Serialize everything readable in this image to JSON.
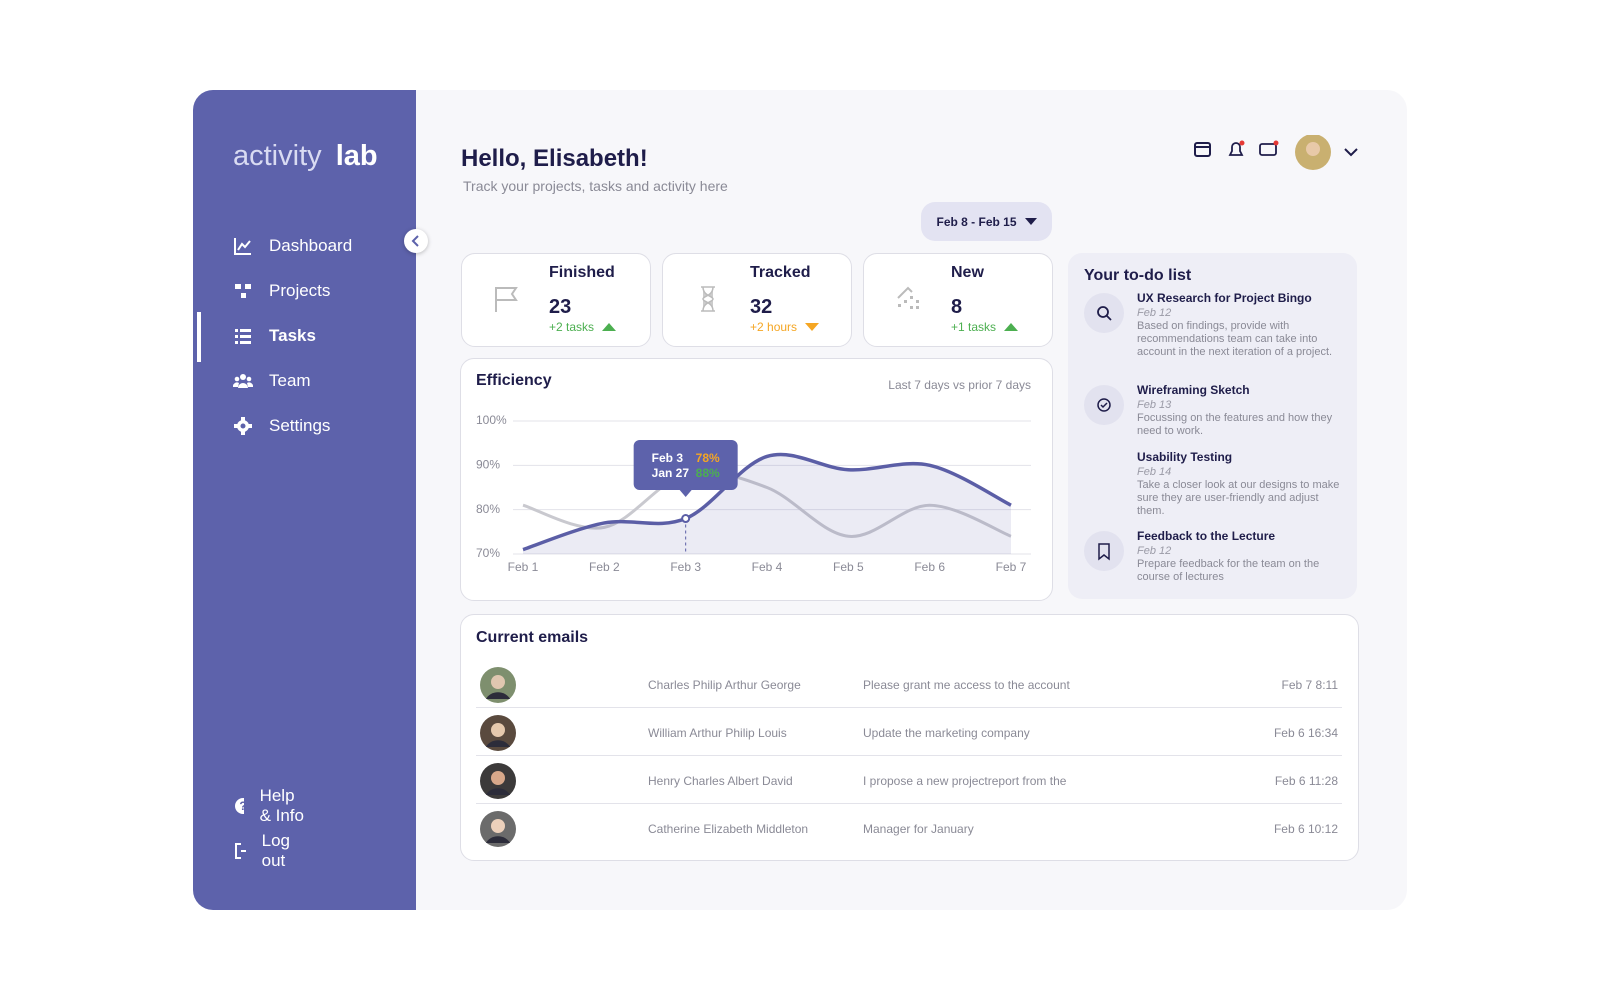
{
  "sidebar": {
    "logo_light": "activity",
    "logo_bold": "lab",
    "nav": [
      "Dashboard",
      "Projects",
      "Tasks",
      "Team",
      "Settings"
    ],
    "bottom_nav": [
      "Help & Info",
      "Log out"
    ]
  },
  "header": {
    "title": "Hello, Elisabeth!",
    "subtitle": "Track your projects, tasks and activity here",
    "date_range": "Feb 8 - Feb 15"
  },
  "stats": [
    {
      "label": "Finished",
      "value": 23,
      "change": "+2 tasks"
    },
    {
      "label": "Tracked",
      "value": 32,
      "change": "+2 hours"
    },
    {
      "label": "New",
      "value": 8,
      "change": "+1 tasks"
    }
  ],
  "efficiency": {
    "type": "line",
    "title": "Efficiency",
    "subtitle": "Last 7 days vs prior 7 days",
    "categories": [
      "Feb 1",
      "Feb 2",
      "Feb 3",
      "Feb 4",
      "Feb 5",
      "Feb 6",
      "Feb 7"
    ],
    "series": [
      {
        "color": "#5b5ea6",
        "values": [
          71,
          77,
          78,
          92,
          89,
          90,
          81
        ]
      },
      {
        "color": "#c9c9cf",
        "values": [
          81,
          76,
          88,
          85,
          74,
          81,
          74
        ]
      }
    ],
    "ylim": [
      70,
      100
    ],
    "yticks": [
      {
        "value": 100,
        "label": "100%"
      },
      {
        "value": 90,
        "label": "90%"
      },
      {
        "value": 80,
        "label": "80%"
      },
      {
        "value": 70,
        "label": "70%"
      }
    ],
    "grid": true,
    "tooltip": {
      "labels": [
        "Feb 3",
        "Jan 27"
      ],
      "values": [
        "78%",
        "88%"
      ]
    }
  },
  "todo": {
    "title": "Your to-do list",
    "items": [
      {
        "title": "UX Research for Project Bingo",
        "date": "Feb 12",
        "text": "Based on findings, provide with recommendations team can take into account in the next iteration of a project."
      },
      {
        "title": "Wireframing Sketch",
        "date": "Feb 13",
        "text": "Focussing on the features and how they need to work."
      },
      {
        "title": "Usability Testing",
        "date": "Feb 14",
        "text": "Take a closer look at our designs to make sure they are user-friendly and adjust them."
      },
      {
        "title": "Feedback to the Lecture",
        "date": "Feb 12",
        "text": "Prepare feedback for the team on the course of lectures"
      }
    ]
  },
  "emails": {
    "title": "Current emails",
    "rows": [
      {
        "sender": "Charles Philip Arthur George",
        "subject": "Please grant me access to the account",
        "time": "Feb 7 8:11"
      },
      {
        "sender": "William Arthur Philip Louis",
        "subject": "Update the marketing company",
        "time": "Feb 6 16:34"
      },
      {
        "sender": "Henry Charles Albert David",
        "subject": "I propose a new projectreport from the",
        "time": "Feb 6 11:28"
      },
      {
        "sender": "Catherine Elizabeth Middleton",
        "subject": "Manager for January",
        "time": "Feb 6 10:12"
      }
    ]
  }
}
